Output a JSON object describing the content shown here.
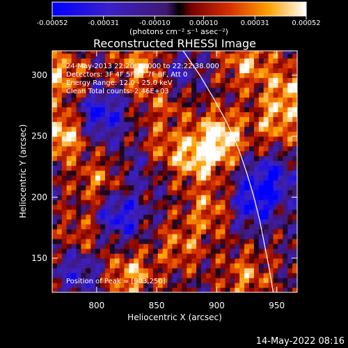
{
  "chart_data": {
    "type": "heatmap",
    "title": "Reconstructed RHESSI Image",
    "xlabel": "Heliocentric X (arcsec)",
    "ylabel": "Heliocentric Y (arcsec)",
    "xlim": [
      763,
      967
    ],
    "ylim": [
      122,
      320
    ],
    "x_ticks": [
      800,
      850,
      900,
      950
    ],
    "y_ticks": [
      150,
      200,
      250,
      300
    ],
    "colorbar": {
      "min": -0.00052,
      "max": 0.00052,
      "tick_values": [
        -0.00052,
        -0.00031,
        -0.0001,
        0.0001,
        0.00031,
        0.00052
      ],
      "tick_labels": [
        "-0.00052",
        "-0.00031",
        "-0.00010",
        "0.00010",
        "0.00031",
        "0.00052"
      ],
      "unit_text": "(photons cm⁻² s⁻¹ asec⁻²)"
    },
    "annotations": [
      "24-May-2013 22:20:32.000 to 22:22:38.000",
      "Detectors: 3F 4F 5F 6F 7F 8F, Att 0",
      "Energy Range: 12.0 - 25.0 keV",
      "Clean    Total counts: 2.46E+03"
    ],
    "peak_label": "Position of Peak = [903,250]",
    "peak": {
      "x": 903,
      "y": 250
    },
    "grid": false,
    "limb_curve": [
      [
        872,
        320
      ],
      [
        886,
        300
      ],
      [
        898,
        280
      ],
      [
        909,
        260
      ],
      [
        918,
        240
      ],
      [
        925,
        220
      ],
      [
        931,
        200
      ],
      [
        936,
        180
      ],
      [
        940,
        160
      ],
      [
        944,
        140
      ],
      [
        947,
        122
      ]
    ],
    "hot_spots": [
      {
        "x": 903,
        "y": 250,
        "value": 0.00052
      },
      {
        "x": 771,
        "y": 252,
        "value": 0.0005
      },
      {
        "x": 885,
        "y": 232,
        "value": 0.00042
      },
      {
        "x": 853,
        "y": 238,
        "value": 0.00032
      },
      {
        "x": 770,
        "y": 300,
        "value": 0.00038
      },
      {
        "x": 838,
        "y": 308,
        "value": 0.0004
      },
      {
        "x": 925,
        "y": 310,
        "value": 0.00036
      },
      {
        "x": 950,
        "y": 262,
        "value": 0.00034
      },
      {
        "x": 960,
        "y": 290,
        "value": 0.00035
      },
      {
        "x": 894,
        "y": 190,
        "value": 0.0003
      },
      {
        "x": 828,
        "y": 136,
        "value": 0.00038
      },
      {
        "x": 802,
        "y": 212,
        "value": 0.00028
      },
      {
        "x": 870,
        "y": 160,
        "value": 0.00026
      },
      {
        "x": 925,
        "y": 135,
        "value": 0.0003
      },
      {
        "x": 790,
        "y": 170,
        "value": 0.00024
      },
      {
        "x": 858,
        "y": 280,
        "value": 0.00026
      }
    ],
    "cold_spots": [
      {
        "x": 803,
        "y": 268,
        "value": -0.00045
      },
      {
        "x": 818,
        "y": 185,
        "value": -0.00045
      },
      {
        "x": 930,
        "y": 195,
        "value": -0.0004
      },
      {
        "x": 785,
        "y": 140,
        "value": -0.0003
      },
      {
        "x": 865,
        "y": 300,
        "value": -0.0003
      },
      {
        "x": 945,
        "y": 215,
        "value": -0.0004
      },
      {
        "x": 840,
        "y": 228,
        "value": -0.00025
      }
    ]
  },
  "footer": {
    "date": "14-May-2022 08:16"
  }
}
